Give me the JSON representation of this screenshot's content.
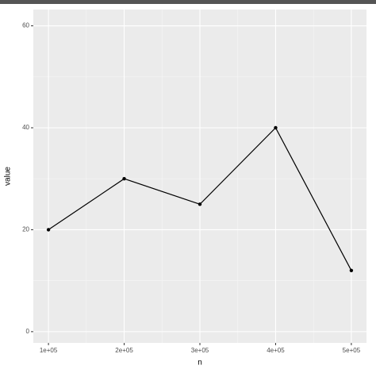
{
  "chart_data": {
    "type": "line",
    "x_label": "n",
    "y_label": "value",
    "x": [
      100000,
      200000,
      300000,
      400000,
      500000
    ],
    "series": [
      {
        "color": "#000000",
        "values": [
          20,
          30,
          25,
          40,
          12
        ]
      }
    ],
    "xlim": [
      80000,
      520000
    ],
    "ylim": [
      -2.2,
      63.2
    ],
    "xticks": [
      {
        "value": 100000,
        "label": "1e+05"
      },
      {
        "value": 200000,
        "label": "2e+05"
      },
      {
        "value": 300000,
        "label": "3e+05"
      },
      {
        "value": 400000,
        "label": "4e+05"
      },
      {
        "value": 500000,
        "label": "5e+05"
      }
    ],
    "yticks": [
      0,
      20,
      40,
      60
    ],
    "x_minor_ticks": [
      150000,
      250000,
      350000,
      450000
    ],
    "y_minor_ticks": [
      10,
      30,
      50
    ],
    "grid": true
  }
}
